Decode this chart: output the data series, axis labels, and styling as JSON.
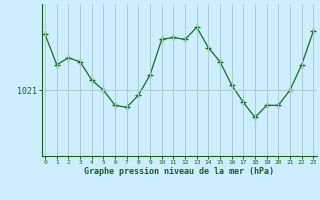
{
  "x": [
    0,
    1,
    2,
    3,
    4,
    5,
    6,
    7,
    8,
    9,
    10,
    11,
    12,
    13,
    14,
    15,
    16,
    17,
    18,
    19,
    20,
    21,
    22,
    23
  ],
  "y": [
    1026.5,
    1023.5,
    1024.2,
    1023.8,
    1022.0,
    1021.0,
    1019.5,
    1019.3,
    1020.5,
    1022.5,
    1026.0,
    1026.2,
    1026.0,
    1027.2,
    1025.2,
    1023.8,
    1021.5,
    1019.8,
    1018.3,
    1019.5,
    1019.5,
    1021.0,
    1023.5,
    1026.8
  ],
  "line_color": "#1a6e1a",
  "marker": "+",
  "marker_size": 4,
  "background_color": "#cceeff",
  "grid_color": "#aacccc",
  "axis_label_color": "#1a5e1a",
  "tick_label_color": "#1a5e1a",
  "ylabel_text": "1021",
  "ytick_value": 1021,
  "xlabel": "Graphe pression niveau de la mer (hPa)",
  "xlim": [
    -0.3,
    23.3
  ],
  "ylim": [
    1014.5,
    1029.5
  ],
  "title": ""
}
